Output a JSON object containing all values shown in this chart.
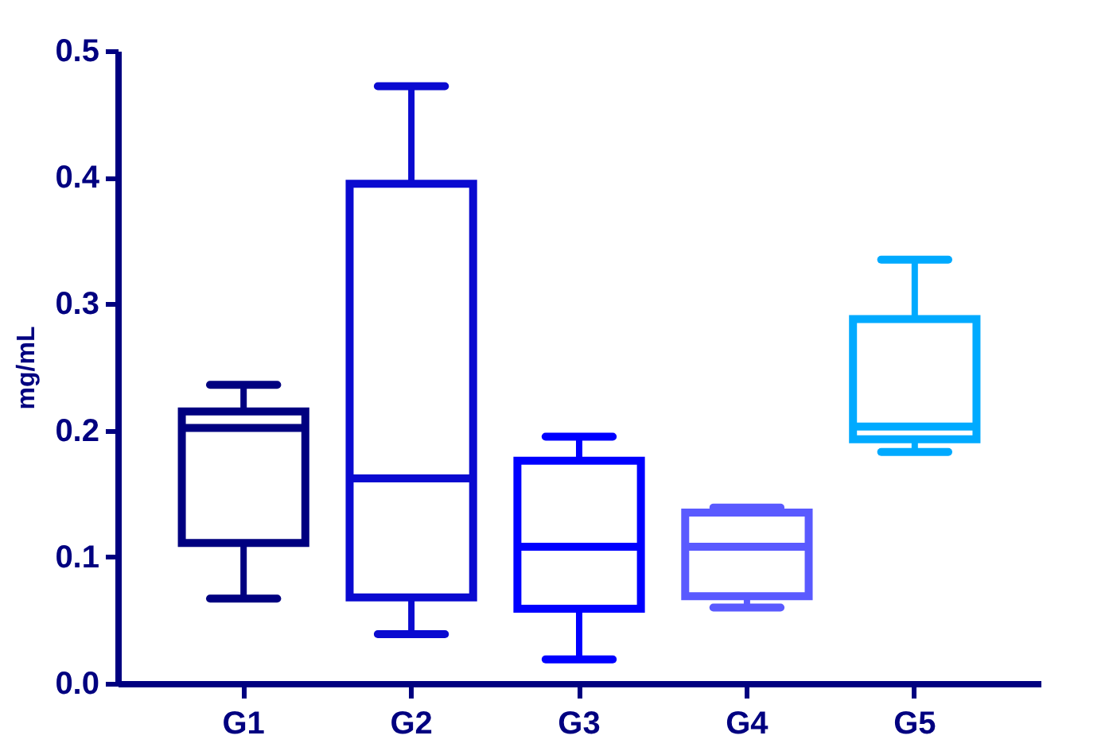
{
  "chart_data": {
    "type": "box",
    "ylabel": "mg/mL",
    "categories": [
      "G1",
      "G2",
      "G3",
      "G4",
      "G5"
    ],
    "colors": [
      "#000080",
      "#0a0ad0",
      "#0000ff",
      "#5a5aff",
      "#00aaff"
    ],
    "boxes": [
      {
        "low": 0.067,
        "q1": 0.111,
        "median": 0.202,
        "q3": 0.215,
        "high": 0.236
      },
      {
        "low": 0.039,
        "q1": 0.068,
        "median": 0.162,
        "q3": 0.395,
        "high": 0.472
      },
      {
        "low": 0.019,
        "q1": 0.059,
        "median": 0.108,
        "q3": 0.176,
        "high": 0.195
      },
      {
        "low": 0.06,
        "q1": 0.069,
        "median": 0.108,
        "q3": 0.135,
        "high": 0.139
      },
      {
        "low": 0.183,
        "q1": 0.193,
        "median": 0.203,
        "q3": 0.288,
        "high": 0.335
      }
    ],
    "ylim": [
      0,
      0.5
    ],
    "yticks": [
      {
        "value": 0,
        "label": "0.0"
      },
      {
        "value": 0.1,
        "label": "0.1"
      },
      {
        "value": 0.2,
        "label": "0.2"
      },
      {
        "value": 0.3,
        "label": "0.3"
      },
      {
        "value": 0.4,
        "label": "0.4"
      },
      {
        "value": 0.5,
        "label": "0.5"
      }
    ],
    "grid": false,
    "legend": false
  }
}
